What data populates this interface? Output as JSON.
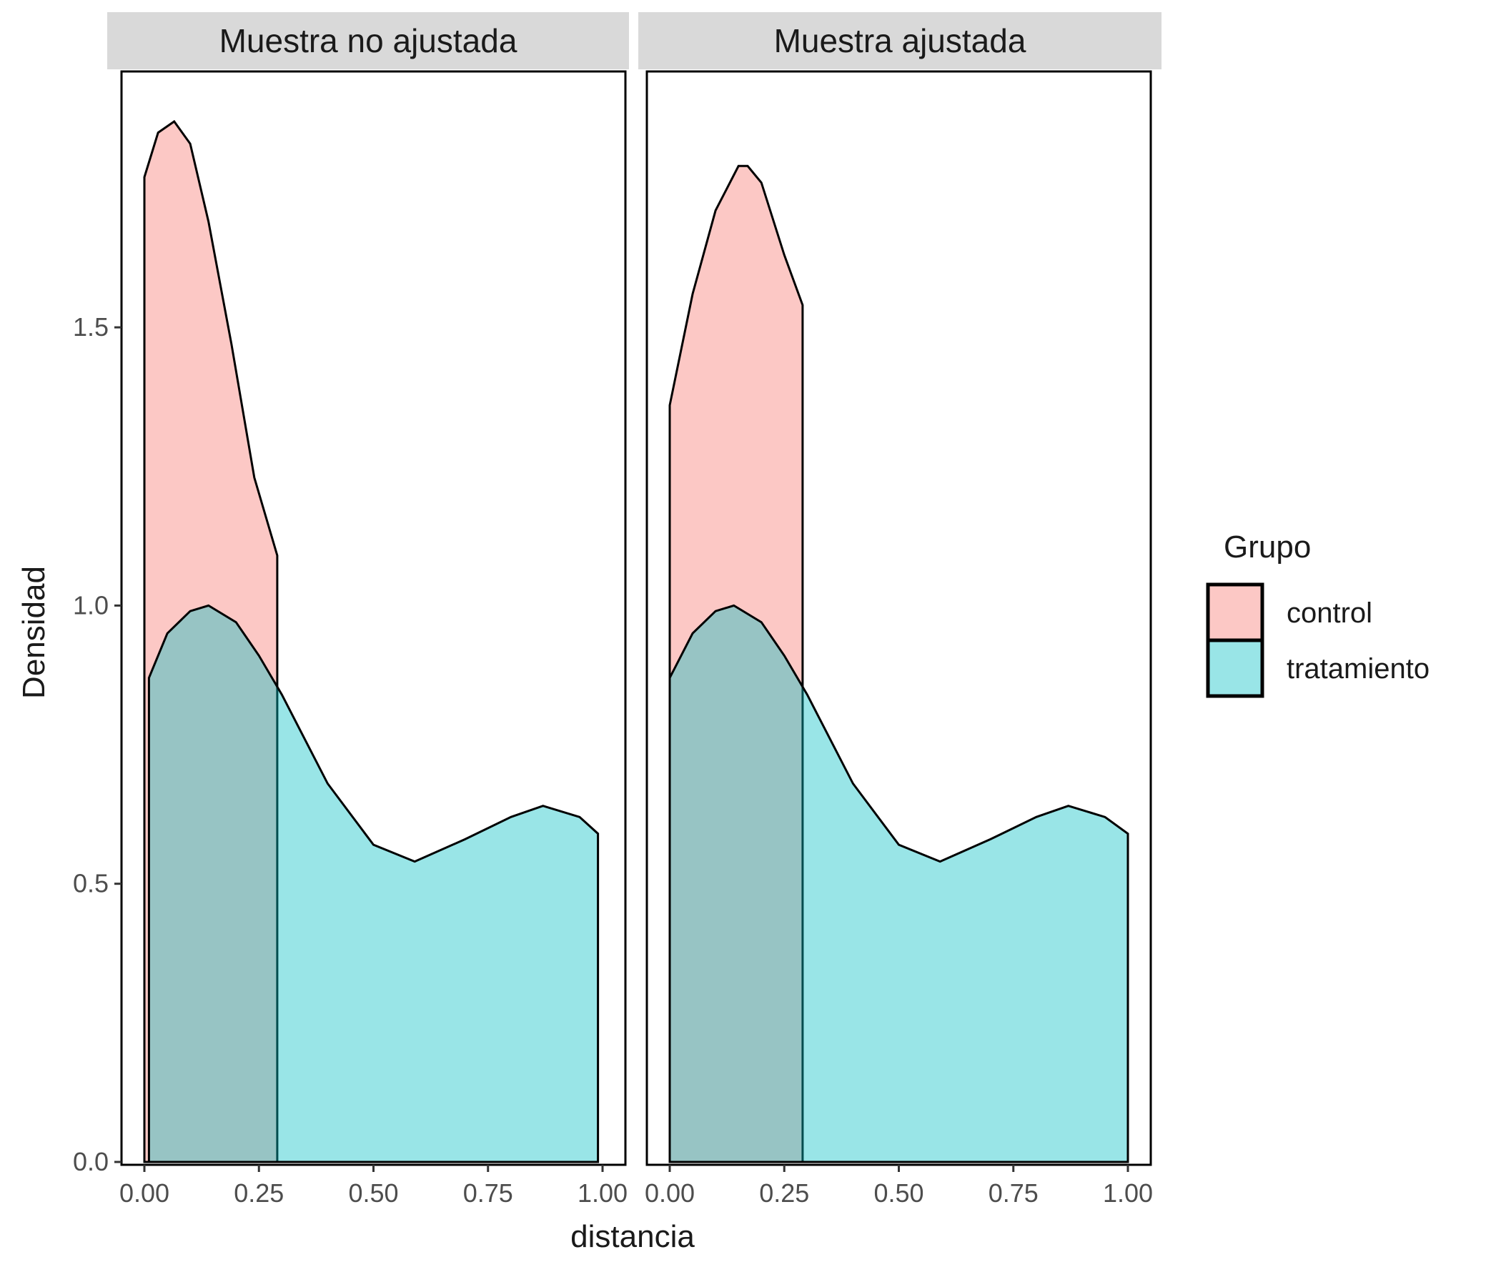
{
  "chart_data": {
    "type": "area",
    "subtype": "density",
    "xlabel": "distancia",
    "ylabel": "Densidad",
    "xlim": [
      0,
      1
    ],
    "ylim": [
      0,
      1.87
    ],
    "x_ticks": [
      "0.00",
      "0.25",
      "0.50",
      "0.75",
      "1.00"
    ],
    "y_ticks": [
      "0.0",
      "0.5",
      "1.0",
      "1.5"
    ],
    "grid": false,
    "legend": {
      "title": "Grupo",
      "position": "right",
      "entries": [
        {
          "label": "control",
          "color": "#F8766D"
        },
        {
          "label": "tratamiento",
          "color": "#00BFC4"
        }
      ]
    },
    "fill_alpha": 0.4,
    "panels": [
      {
        "title": "Muestra no ajustada",
        "series": [
          {
            "name": "control",
            "color": "#F8766D",
            "x": [
              0.0,
              0.03,
              0.065,
              0.1,
              0.14,
              0.19,
              0.24,
              0.29
            ],
            "y": [
              1.77,
              1.85,
              1.87,
              1.83,
              1.69,
              1.47,
              1.23,
              1.09
            ]
          },
          {
            "name": "tratamiento",
            "color": "#00BFC4",
            "x": [
              0.01,
              0.05,
              0.1,
              0.14,
              0.2,
              0.25,
              0.3,
              0.4,
              0.5,
              0.59,
              0.7,
              0.8,
              0.87,
              0.95,
              0.99
            ],
            "y": [
              0.87,
              0.95,
              0.99,
              1.0,
              0.97,
              0.91,
              0.84,
              0.68,
              0.57,
              0.54,
              0.58,
              0.62,
              0.64,
              0.62,
              0.59
            ]
          }
        ]
      },
      {
        "title": "Muestra ajustada",
        "series": [
          {
            "name": "control",
            "color": "#F8766D",
            "x": [
              0.0,
              0.05,
              0.1,
              0.15,
              0.17,
              0.2,
              0.25,
              0.29
            ],
            "y": [
              1.36,
              1.56,
              1.71,
              1.79,
              1.79,
              1.76,
              1.63,
              1.54
            ]
          },
          {
            "name": "tratamiento",
            "color": "#00BFC4",
            "x": [
              0.0,
              0.05,
              0.1,
              0.14,
              0.2,
              0.25,
              0.3,
              0.4,
              0.5,
              0.59,
              0.7,
              0.8,
              0.87,
              0.95,
              1.0
            ],
            "y": [
              0.87,
              0.95,
              0.99,
              1.0,
              0.97,
              0.91,
              0.84,
              0.68,
              0.57,
              0.54,
              0.58,
              0.62,
              0.64,
              0.62,
              0.59
            ]
          }
        ]
      }
    ]
  }
}
